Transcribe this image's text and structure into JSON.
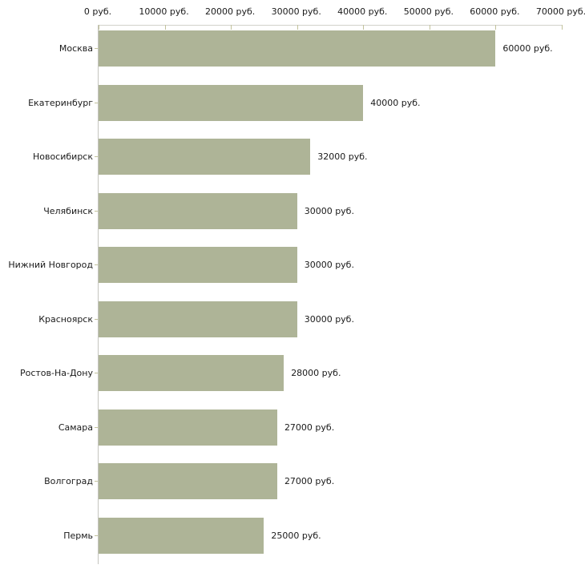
{
  "chart_data": {
    "type": "bar",
    "orientation": "horizontal",
    "title": "",
    "xlabel": "",
    "ylabel": "",
    "categories": [
      "Москва",
      "Екатеринбург",
      "Новосибирск",
      "Челябинск",
      "Нижний Новгород",
      "Красноярск",
      "Ростов-На-Дону",
      "Самара",
      "Волгоград",
      "Пермь"
    ],
    "values": [
      60000,
      40000,
      32000,
      30000,
      30000,
      30000,
      28000,
      27000,
      27000,
      25000
    ],
    "value_labels": [
      "60000 руб.",
      "40000 руб.",
      "32000 руб.",
      "30000 руб.",
      "30000 руб.",
      "30000 руб.",
      "28000 руб.",
      "27000 руб.",
      "27000 руб.",
      "25000 руб."
    ],
    "x_tick_labels": [
      "0 руб.",
      "10000 руб.",
      "20000 руб.",
      "30000 руб.",
      "40000 руб.",
      "50000 руб.",
      "60000 руб.",
      "70000 руб."
    ],
    "x_tick_values": [
      0,
      10000,
      20000,
      30000,
      40000,
      50000,
      60000,
      70000
    ],
    "xlim": [
      0,
      70000
    ],
    "grid": "off",
    "legend": "none",
    "colors": {
      "bar": "#aeb497",
      "axis_line": "#c4c4be",
      "top_axis_line": "#d2d2ca",
      "tick": "#c2c29c",
      "text": "#1a1a1a",
      "background": "#ffffff"
    }
  }
}
